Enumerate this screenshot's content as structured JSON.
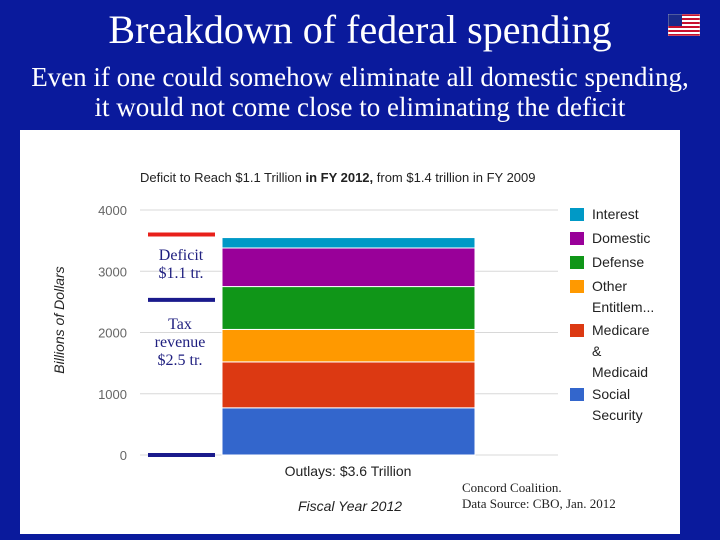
{
  "slide": {
    "title": "Breakdown of federal spending",
    "subtitle_line1": "Even if one could somehow eliminate all domestic spending,",
    "subtitle_line2": "it would not come close to eliminating the deficit",
    "flag_icon": "us-flag-icon"
  },
  "chart_data": {
    "type": "bar",
    "stacked": true,
    "title": "Deficit to Reach $1.1 Trillion",
    "title_suffix_bold": "in FY 2012,",
    "title_suffix": "from $1.4 trillion in FY 2009",
    "ylabel": "Billions of Dollars",
    "xlabel": "Fiscal Year 2012",
    "ylim": [
      0,
      4000
    ],
    "yticks": [
      0,
      1000,
      2000,
      3000,
      4000
    ],
    "grid": true,
    "legend_position": "right",
    "categories": [
      "Outlays: $3.6 Trillion"
    ],
    "series": [
      {
        "name": "Social Security",
        "values": [
          770
        ],
        "color": "#3366cc"
      },
      {
        "name": "Medicare & Medicaid",
        "values": [
          750
        ],
        "color": "#dc3912"
      },
      {
        "name": "Other Entitlem...",
        "values": [
          530
        ],
        "color": "#ff9900"
      },
      {
        "name": "Defense",
        "values": [
          700
        ],
        "color": "#109618"
      },
      {
        "name": "Domestic",
        "values": [
          630
        ],
        "color": "#990099"
      },
      {
        "name": "Interest",
        "values": [
          170
        ],
        "color": "#0099c6"
      }
    ],
    "annotations": {
      "deficit_label": "Deficit",
      "deficit_value": "$1.1 tr.",
      "tax_label": "Tax",
      "tax_label2": "revenue",
      "tax_value": "$2.5 tr.",
      "deficit_range": [
        2500,
        3600
      ],
      "tax_range": [
        0,
        2500
      ]
    },
    "credit_line1": "Concord Coalition.",
    "credit_line2": "Data Source: CBO, Jan. 2012"
  }
}
